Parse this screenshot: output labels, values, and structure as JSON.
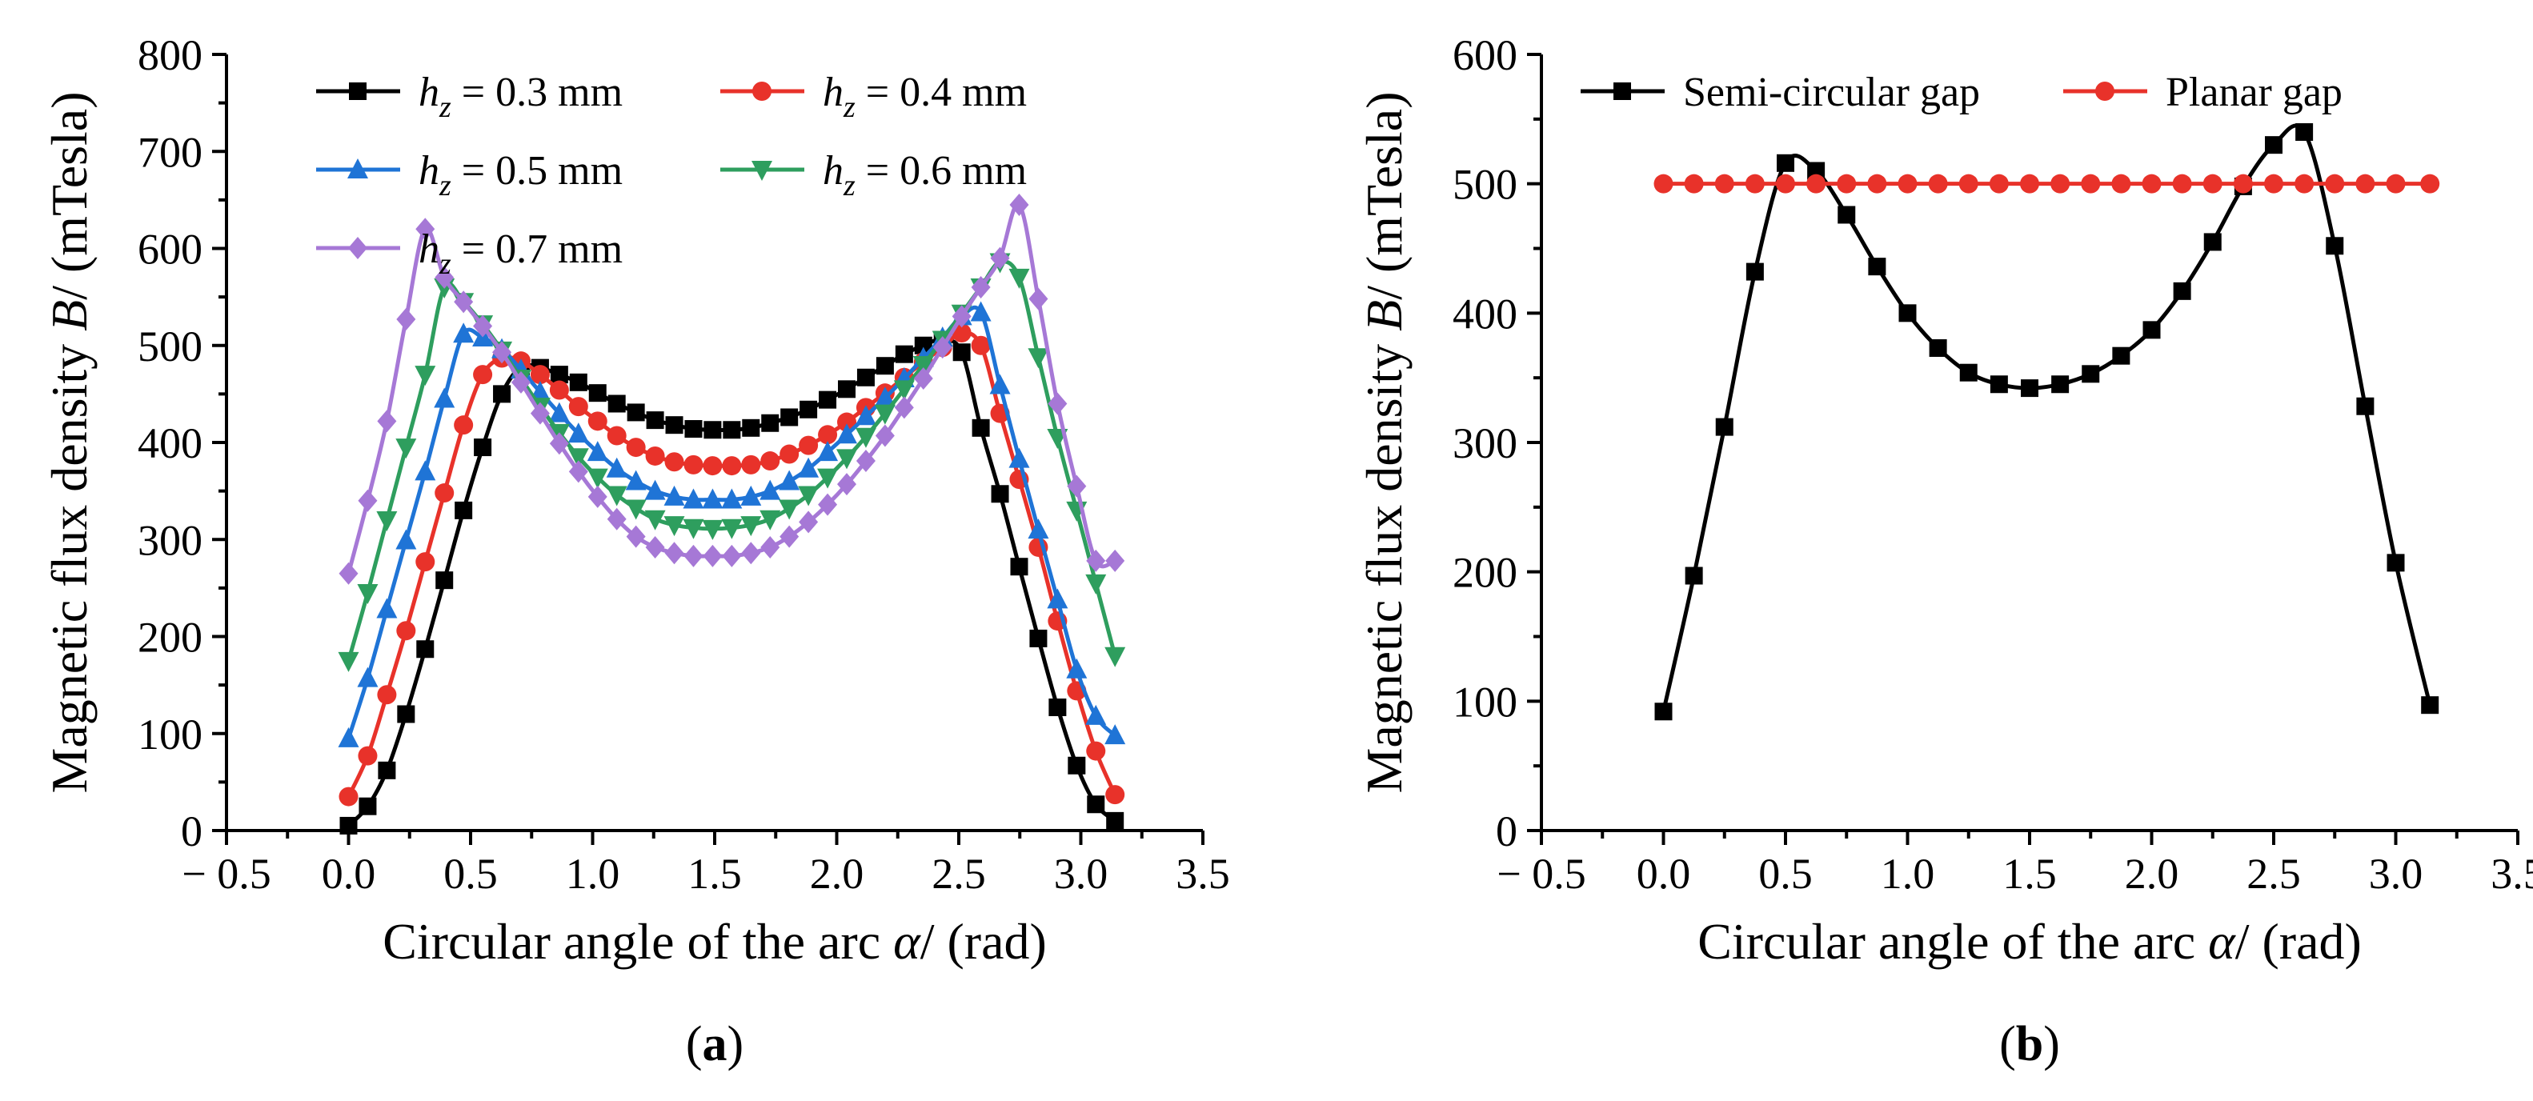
{
  "chart_data": [
    {
      "type": "line",
      "panel_label": "a",
      "xlabel_main": "Circular angle of the arc ",
      "xlabel_symbol": "α",
      "xlabel_unit": "/ (rad)",
      "ylabel_main": "Magnetic flux density ",
      "ylabel_symbol": "B",
      "ylabel_unit": "/ (mTesla)",
      "xlim": [
        -0.5,
        3.5
      ],
      "ylim": [
        0,
        800
      ],
      "xticks": [
        -0.5,
        0.0,
        0.5,
        1.0,
        1.5,
        2.0,
        2.5,
        3.0,
        3.5
      ],
      "xtick_labels": [
        "− 0.5",
        "0.0",
        "0.5",
        "1.0",
        "1.5",
        "2.0",
        "2.5",
        "3.0",
        "3.5"
      ],
      "yticks": [
        0,
        100,
        200,
        300,
        400,
        500,
        600,
        700,
        800
      ],
      "ytick_labels": [
        "0",
        "100",
        "200",
        "300",
        "400",
        "500",
        "600",
        "700",
        "800"
      ],
      "grid": false,
      "legend_placement": "top",
      "series": [
        {
          "name": "hz = 0.3 mm",
          "legend_var": "h",
          "legend_sub": "z",
          "legend_rest": " = 0.3 mm",
          "color": "#000000",
          "marker": "square",
          "x": [
            0.0,
            0.0785,
            0.157,
            0.2355,
            0.314,
            0.3925,
            0.471,
            0.5495,
            0.628,
            0.7065,
            0.785,
            0.8635,
            0.942,
            1.0205,
            1.099,
            1.1775,
            1.256,
            1.3345,
            1.413,
            1.4915,
            1.57,
            1.6485,
            1.727,
            1.8055,
            1.884,
            1.9625,
            2.041,
            2.1195,
            2.198,
            2.2765,
            2.355,
            2.4335,
            2.512,
            2.5905,
            2.669,
            2.7475,
            2.826,
            2.9045,
            2.983,
            3.0615,
            3.14
          ],
          "y": [
            5,
            25,
            62,
            120,
            187,
            258,
            330,
            395,
            450,
            478,
            477,
            470,
            462,
            451,
            440,
            431,
            423,
            418,
            414,
            413,
            413,
            415,
            420,
            426,
            434,
            444,
            455,
            467,
            479,
            491,
            500,
            506,
            493,
            415,
            347,
            272,
            198,
            127,
            67,
            27,
            10
          ]
        },
        {
          "name": "hz = 0.4 mm",
          "legend_var": "h",
          "legend_sub": "z",
          "legend_rest": " = 0.4 mm",
          "color": "#e8322a",
          "marker": "circle",
          "x": [
            0.0,
            0.0785,
            0.157,
            0.2355,
            0.314,
            0.3925,
            0.471,
            0.5495,
            0.628,
            0.7065,
            0.785,
            0.8635,
            0.942,
            1.0205,
            1.099,
            1.1775,
            1.256,
            1.3345,
            1.413,
            1.4915,
            1.57,
            1.6485,
            1.727,
            1.8055,
            1.884,
            1.9625,
            2.041,
            2.1195,
            2.198,
            2.2765,
            2.355,
            2.4335,
            2.512,
            2.5905,
            2.669,
            2.7475,
            2.826,
            2.9045,
            2.983,
            3.0615,
            3.14
          ],
          "y": [
            35,
            77,
            140,
            206,
            277,
            348,
            418,
            470,
            487,
            484,
            470,
            454,
            437,
            422,
            407,
            395,
            386,
            380,
            377,
            376,
            376,
            377,
            381,
            388,
            397,
            408,
            421,
            436,
            451,
            467,
            483,
            498,
            513,
            500,
            430,
            362,
            292,
            216,
            144,
            82,
            37
          ]
        },
        {
          "name": "hz = 0.5 mm",
          "legend_var": "h",
          "legend_sub": "z",
          "legend_rest": " = 0.5 mm",
          "color": "#1f74d6",
          "marker": "triangle-up",
          "x": [
            0.0,
            0.0785,
            0.157,
            0.2355,
            0.314,
            0.3925,
            0.471,
            0.5495,
            0.628,
            0.7065,
            0.785,
            0.8635,
            0.942,
            1.0205,
            1.099,
            1.1775,
            1.256,
            1.3345,
            1.413,
            1.4915,
            1.57,
            1.6485,
            1.727,
            1.8055,
            1.884,
            1.9625,
            2.041,
            2.1195,
            2.198,
            2.2765,
            2.355,
            2.4335,
            2.512,
            2.5905,
            2.669,
            2.7475,
            2.826,
            2.9045,
            2.983,
            3.0615,
            3.14
          ],
          "y": [
            95,
            157,
            228,
            299,
            370,
            445,
            512,
            508,
            496,
            475,
            452,
            430,
            409,
            390,
            373,
            360,
            350,
            344,
            341,
            341,
            341,
            344,
            350,
            360,
            373,
            390,
            408,
            427,
            446,
            466,
            487,
            508,
            530,
            534,
            459,
            383,
            310,
            238,
            166,
            118,
            98
          ]
        },
        {
          "name": "hz = 0.6 mm",
          "legend_var": "h",
          "legend_sub": "z",
          "legend_rest": " = 0.6 mm",
          "color": "#2e9e5e",
          "marker": "triangle-down",
          "x": [
            0.0,
            0.0785,
            0.157,
            0.2355,
            0.314,
            0.3925,
            0.471,
            0.5495,
            0.628,
            0.7065,
            0.785,
            0.8635,
            0.942,
            1.0205,
            1.099,
            1.1775,
            1.256,
            1.3345,
            1.413,
            1.4915,
            1.57,
            1.6485,
            1.727,
            1.8055,
            1.884,
            1.9625,
            2.041,
            2.1195,
            2.198,
            2.2765,
            2.355,
            2.4335,
            2.512,
            2.5905,
            2.669,
            2.7475,
            2.826,
            2.9045,
            2.983,
            3.0615,
            3.14
          ],
          "y": [
            175,
            245,
            320,
            395,
            470,
            560,
            545,
            522,
            495,
            466,
            437,
            410,
            385,
            364,
            346,
            332,
            321,
            315,
            312,
            311,
            312,
            315,
            321,
            332,
            346,
            364,
            384,
            406,
            430,
            455,
            480,
            506,
            533,
            560,
            586,
            570,
            488,
            405,
            330,
            255,
            180
          ]
        },
        {
          "name": "hz = 0.7 mm",
          "legend_var": "h",
          "legend_sub": "z",
          "legend_rest": " = 0.7 mm",
          "color": "#a678d6",
          "marker": "diamond",
          "x": [
            0.0,
            0.0785,
            0.157,
            0.2355,
            0.314,
            0.3925,
            0.471,
            0.5495,
            0.628,
            0.7065,
            0.785,
            0.8635,
            0.942,
            1.0205,
            1.099,
            1.1775,
            1.256,
            1.3345,
            1.413,
            1.4915,
            1.57,
            1.6485,
            1.727,
            1.8055,
            1.884,
            1.9625,
            2.041,
            2.1195,
            2.198,
            2.2765,
            2.355,
            2.4335,
            2.512,
            2.5905,
            2.669,
            2.7475,
            2.826,
            2.9045,
            2.983,
            3.0615,
            3.14
          ],
          "y": [
            265,
            340,
            422,
            527,
            620,
            570,
            545,
            520,
            493,
            462,
            430,
            399,
            370,
            344,
            321,
            303,
            292,
            286,
            283,
            283,
            283,
            286,
            292,
            303,
            318,
            336,
            357,
            381,
            407,
            436,
            466,
            498,
            530,
            560,
            590,
            645,
            548,
            440,
            355,
            278,
            278
          ]
        }
      ]
    },
    {
      "type": "line",
      "panel_label": "b",
      "xlabel_main": "Circular angle of the arc ",
      "xlabel_symbol": "α",
      "xlabel_unit": "/ (rad)",
      "ylabel_main": "Magnetic flux density ",
      "ylabel_symbol": "B",
      "ylabel_unit": "/ (mTesla)",
      "xlim": [
        -0.5,
        3.5
      ],
      "ylim": [
        0,
        600
      ],
      "xticks": [
        -0.5,
        0.0,
        0.5,
        1.0,
        1.5,
        2.0,
        2.5,
        3.0,
        3.5
      ],
      "xtick_labels": [
        "− 0.5",
        "0.0",
        "0.5",
        "1.0",
        "1.5",
        "2.0",
        "2.5",
        "3.0",
        "3.5"
      ],
      "yticks": [
        0,
        100,
        200,
        300,
        400,
        500,
        600
      ],
      "ytick_labels": [
        "0",
        "100",
        "200",
        "300",
        "400",
        "500",
        "600"
      ],
      "grid": false,
      "legend_placement": "top",
      "series": [
        {
          "name": "Semi-circular gap",
          "color": "#000000",
          "marker": "square",
          "x": [
            0.0,
            0.125,
            0.25,
            0.375,
            0.5,
            0.625,
            0.75,
            0.875,
            1.0,
            1.125,
            1.25,
            1.375,
            1.5,
            1.625,
            1.75,
            1.875,
            2.0,
            2.125,
            2.25,
            2.375,
            2.5,
            2.625,
            2.75,
            2.875,
            3.0,
            3.14
          ],
          "y": [
            92,
            197,
            312,
            432,
            516,
            510,
            476,
            436,
            400,
            373,
            354,
            345,
            342,
            345,
            353,
            367,
            387,
            417,
            455,
            498,
            530,
            540,
            452,
            328,
            207,
            97
          ]
        },
        {
          "name": "Planar gap",
          "color": "#e8322a",
          "marker": "circle",
          "x": [
            0.0,
            0.125,
            0.25,
            0.375,
            0.5,
            0.625,
            0.75,
            0.875,
            1.0,
            1.125,
            1.25,
            1.375,
            1.5,
            1.625,
            1.75,
            1.875,
            2.0,
            2.125,
            2.25,
            2.375,
            2.5,
            2.625,
            2.75,
            2.875,
            3.0,
            3.14
          ],
          "y": [
            500,
            500,
            500,
            500,
            500,
            500,
            500,
            500,
            500,
            500,
            500,
            500,
            500,
            500,
            500,
            500,
            500,
            500,
            500,
            500,
            500,
            500,
            500,
            500,
            500,
            500
          ]
        }
      ]
    }
  ]
}
